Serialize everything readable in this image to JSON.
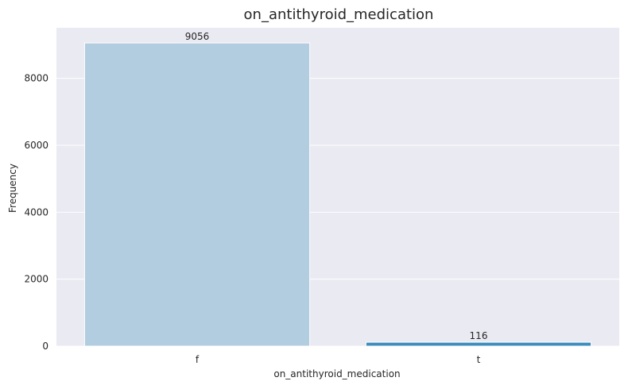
{
  "chart_data": {
    "type": "bar",
    "title": "on_antithyroid_medication",
    "xlabel": "on_antithyroid_medication",
    "ylabel": "Frequency",
    "categories": [
      "f",
      "t"
    ],
    "values": [
      9056,
      116
    ],
    "data_labels": [
      "9056",
      "116"
    ],
    "ylim": [
      0,
      9508.8
    ],
    "yticks": [
      0,
      2000,
      4000,
      6000,
      8000
    ],
    "grid": true,
    "colors": [
      "#b3cde0",
      "#3f8dbd"
    ],
    "plot_bg": "#eaeaf2"
  }
}
